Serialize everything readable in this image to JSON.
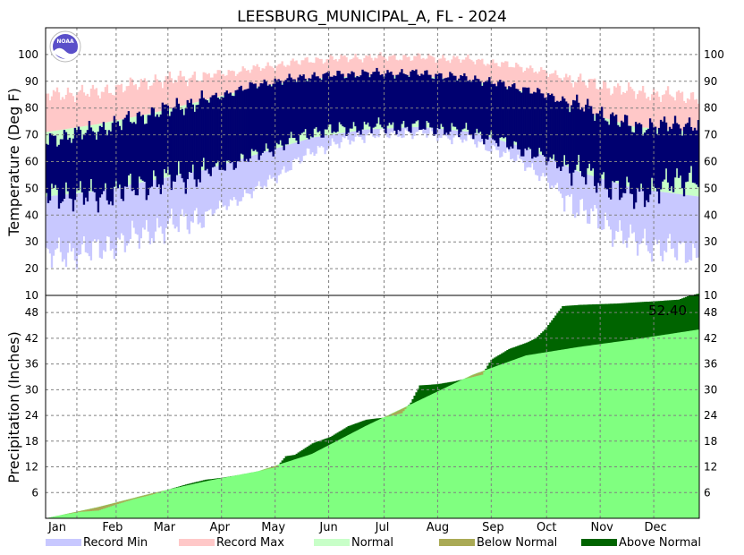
{
  "chart_data": [
    {
      "type": "bar",
      "title": "LEESBURG_MUNICIPAL_A, FL - 2024",
      "ylabel": "Temperature (Deg F)",
      "ylim": [
        10,
        110
      ],
      "yticks": [
        10,
        20,
        30,
        40,
        50,
        60,
        70,
        80,
        90,
        100
      ],
      "months": [
        "Jan",
        "Feb",
        "Mar",
        "Apr",
        "May",
        "Jun",
        "Jul",
        "Aug",
        "Sep",
        "Oct",
        "Nov",
        "Dec"
      ],
      "grid": true,
      "x_unit": "day of year",
      "record_min_smoothed": {
        "x": [
          1,
          30,
          60,
          90,
          120,
          150,
          180,
          210,
          240,
          270,
          300,
          330,
          366
        ],
        "values": [
          25,
          27,
          34,
          40,
          50,
          64,
          70,
          71,
          68,
          59,
          42,
          30,
          25
        ]
      },
      "record_max_smoothed": {
        "x": [
          1,
          30,
          60,
          90,
          120,
          150,
          180,
          210,
          240,
          270,
          300,
          330,
          366
        ],
        "values": [
          85,
          86,
          90,
          92,
          95,
          98,
          99,
          99,
          98,
          95,
          90,
          86,
          84
        ]
      },
      "normal_low": {
        "x": [
          1,
          30,
          60,
          90,
          120,
          150,
          180,
          210,
          240,
          270,
          300,
          330,
          366
        ],
        "values": [
          47,
          49,
          53,
          57,
          63,
          69,
          72,
          73,
          71,
          65,
          56,
          50,
          47
        ]
      },
      "normal_high": {
        "x": [
          1,
          30,
          60,
          90,
          120,
          150,
          180,
          210,
          240,
          270,
          300,
          330,
          366
        ],
        "values": [
          71,
          74,
          78,
          83,
          88,
          91,
          92,
          92,
          90,
          86,
          79,
          73,
          71
        ]
      },
      "observed_low_smoothed": {
        "x": [
          1,
          30,
          60,
          90,
          120,
          150,
          180,
          210,
          240,
          270,
          300,
          330,
          366
        ],
        "values": [
          48,
          47,
          52,
          56,
          63,
          71,
          73,
          73,
          71,
          64,
          56,
          47,
          55
        ]
      },
      "observed_high_smoothed": {
        "x": [
          1,
          30,
          60,
          90,
          120,
          150,
          180,
          210,
          240,
          270,
          300,
          330,
          366
        ],
        "values": [
          68,
          72,
          78,
          83,
          89,
          92,
          93,
          93,
          91,
          87,
          81,
          73,
          74
        ]
      }
    },
    {
      "type": "area",
      "ylabel": "Precipitation (Inches)",
      "ylim": [
        0,
        52
      ],
      "yticks": [
        6,
        12,
        18,
        24,
        30,
        36,
        42,
        48
      ],
      "grid": true,
      "x_unit": "day of year",
      "annotation": "52.40",
      "observed_cumulative": {
        "x": [
          1,
          10,
          20,
          30,
          40,
          50,
          60,
          70,
          80,
          90,
          100,
          110,
          120,
          130,
          135,
          140,
          150,
          160,
          170,
          180,
          190,
          200,
          205,
          210,
          220,
          230,
          240,
          245,
          250,
          260,
          270,
          275,
          280,
          290,
          300,
          320,
          340,
          355,
          360,
          366
        ],
        "values": [
          0.0,
          0.8,
          1.5,
          1.8,
          3.2,
          4.5,
          5.5,
          6.8,
          8.0,
          9.0,
          9.5,
          10.2,
          11.0,
          12.0,
          14.5,
          14.8,
          17.5,
          19.0,
          21.5,
          23.0,
          23.5,
          24.5,
          27.0,
          31.0,
          31.3,
          32.0,
          33.0,
          33.5,
          37.0,
          39.5,
          41.0,
          42.0,
          44.0,
          49.5,
          49.8,
          50.1,
          50.6,
          51.0,
          51.8,
          52.4
        ]
      },
      "normal_cumulative": {
        "x": [
          1,
          30,
          60,
          90,
          120,
          150,
          180,
          210,
          240,
          270,
          300,
          330,
          366
        ],
        "values": [
          0.0,
          2.6,
          5.8,
          8.6,
          11.0,
          15.0,
          21.5,
          27.5,
          33.5,
          38.0,
          40.0,
          41.7,
          44.0
        ]
      }
    }
  ],
  "legend": [
    {
      "label": "Record Min",
      "color": "#c8c8ff"
    },
    {
      "label": "Record Max",
      "color": "#ffc8c8"
    },
    {
      "label": "Normal",
      "color": "#c8ffc8"
    },
    {
      "label": "Below Normal",
      "color": "#aaaa55"
    },
    {
      "label": "Above Normal",
      "color": "#006400"
    }
  ],
  "colors": {
    "observed_temp": "#000070",
    "normal_precip": "#80ff80",
    "noaa_logo": "#5a4fc9"
  },
  "logo": {
    "text": "NOAA"
  }
}
